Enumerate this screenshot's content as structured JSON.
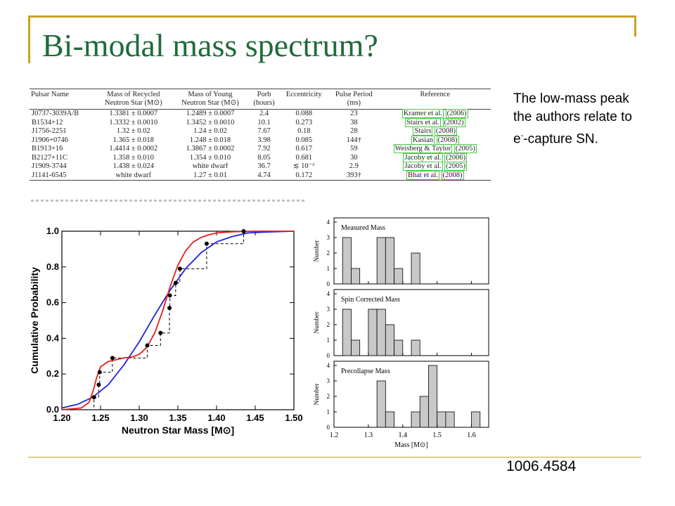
{
  "slide": {
    "title": "Bi-modal mass spectrum?",
    "note_line1": "The low-mass peak",
    "note_line2": "the authors relate to",
    "note_line3_pre": "e",
    "note_line3_sup": "-",
    "note_line3_post": "-capture SN.",
    "reference": "1006.4584"
  },
  "colors": {
    "title": "#1f6b3b",
    "accent_line": "#c9a227",
    "ref_box": "#3fcf3f",
    "cdf_red": "#e02020",
    "cdf_blue": "#2020e0",
    "hist_bar": "#c8c8c8"
  },
  "table": {
    "headers": {
      "name": "Pulsar Name",
      "recycled": [
        "Mass of Recycled",
        "Neutron Star (M⊙)"
      ],
      "young": [
        "Mass of Young",
        "Neutron Star (M⊙)"
      ],
      "porb": [
        "Porb",
        "(hours)"
      ],
      "ecc": "Eccentricity",
      "period": [
        "Pulse Period",
        "(ms)"
      ],
      "ref": "Reference"
    },
    "rows": [
      {
        "name": "J0737-3039A/B",
        "recycled": "1.3381 ± 0.0007",
        "young": "1.2489 ± 0.0007",
        "porb": "2.4",
        "ecc": "0.088",
        "period": "23",
        "ref_author": "Kramer et al.",
        "ref_year": "(2006)"
      },
      {
        "name": "B1534+12",
        "recycled": "1.3332 ± 0.0010",
        "young": "1.3452 ± 0.0010",
        "porb": "10.1",
        "ecc": "0.273",
        "period": "38",
        "ref_author": "Stairs et al.",
        "ref_year": "(2002)"
      },
      {
        "name": "J1756-2251",
        "recycled": "1.32 ± 0.02",
        "young": "1.24 ± 0.02",
        "porb": "7.67",
        "ecc": "0.18",
        "period": "28",
        "ref_author": "Stairs",
        "ref_year": "(2008)"
      },
      {
        "name": "J1906+0746",
        "recycled": "1.365 ± 0.018",
        "young": "1.248 ± 0.018",
        "porb": "3.98",
        "ecc": "0.085",
        "period": "144†",
        "ref_author": "Kasian",
        "ref_year": "(2008)"
      },
      {
        "name": "B1913+16",
        "recycled": "1.4414 ± 0.0002",
        "young": "1.3867 ± 0.0002",
        "porb": "7.92",
        "ecc": "0.617",
        "period": "59",
        "ref_author": "Weisberg & Taylor",
        "ref_year": "(2005)"
      },
      {
        "name": "B2127+11C",
        "recycled": "1.358 ± 0.010",
        "young": "1.354 ± 0.010",
        "porb": "8.05",
        "ecc": "0.681",
        "period": "30",
        "ref_author": "Jacoby et al.",
        "ref_year": "(2006)"
      },
      {
        "name": "J1909-3744",
        "recycled": "1.438 ± 0.024",
        "young": "white dwarf",
        "porb": "36.7",
        "ecc": "≲ 10⁻⁶",
        "period": "2.9",
        "ref_author": "Jacoby et al.",
        "ref_year": "(2005)"
      },
      {
        "name": "J1141-6545",
        "recycled": "white dwarf",
        "young": "1.27 ± 0.01",
        "porb": "4.74",
        "ecc": "0.172",
        "period": "393†",
        "ref_author": "Bhat et al.",
        "ref_year": "(2008)"
      }
    ]
  },
  "chart_data": [
    {
      "type": "line",
      "xlabel": "Neutron Star Mass [M⊙]",
      "ylabel": "Cumulative Probability",
      "xlim": [
        1.2,
        1.5
      ],
      "ylim": [
        0.0,
        1.0
      ],
      "xticks": [
        "1.20",
        "1.25",
        "1.30",
        "1.35",
        "1.40",
        "1.45",
        "1.50"
      ],
      "yticks": [
        "0.0",
        "0.2",
        "0.4",
        "0.6",
        "0.8",
        "1.0"
      ],
      "series": [
        {
          "style": "points",
          "x": [
            1.2415,
            1.2476,
            1.2489,
            1.2653,
            1.3104,
            1.3275,
            1.3391,
            1.3396,
            1.3471,
            1.3526,
            1.3872,
            1.435
          ],
          "y": [
            0.07,
            0.14,
            0.21,
            0.29,
            0.36,
            0.43,
            0.57,
            0.64,
            0.71,
            0.79,
            0.93,
            1.0
          ]
        },
        {
          "style": "red-model",
          "x": [
            1.2,
            1.225,
            1.235,
            1.24,
            1.245,
            1.25,
            1.26,
            1.27,
            1.28,
            1.29,
            1.3,
            1.31,
            1.32,
            1.33,
            1.34,
            1.35,
            1.36,
            1.37,
            1.38,
            1.39,
            1.4,
            1.42,
            1.45,
            1.5
          ],
          "y": [
            0.0,
            0.01,
            0.04,
            0.1,
            0.18,
            0.24,
            0.27,
            0.28,
            0.29,
            0.295,
            0.31,
            0.35,
            0.43,
            0.55,
            0.69,
            0.81,
            0.89,
            0.94,
            0.965,
            0.98,
            0.99,
            0.997,
            1.0,
            1.0
          ]
        },
        {
          "style": "blue-model",
          "x": [
            1.2,
            1.22,
            1.24,
            1.26,
            1.28,
            1.3,
            1.32,
            1.34,
            1.36,
            1.38,
            1.4,
            1.42,
            1.44,
            1.46,
            1.5
          ],
          "y": [
            0.01,
            0.03,
            0.07,
            0.14,
            0.25,
            0.38,
            0.53,
            0.67,
            0.79,
            0.88,
            0.94,
            0.97,
            0.99,
            0.995,
            1.0
          ]
        }
      ]
    },
    {
      "type": "bar",
      "title": "Measured Mass",
      "ylabel": "Number",
      "xlim": [
        1.2,
        1.65
      ],
      "ylim": [
        0,
        4
      ],
      "yticks": [
        "0",
        "1",
        "2",
        "3",
        "4"
      ],
      "bin_width": 0.025,
      "bins": [
        {
          "x": 1.225,
          "v": 3
        },
        {
          "x": 1.25,
          "v": 1
        },
        {
          "x": 1.325,
          "v": 3
        },
        {
          "x": 1.35,
          "v": 3
        },
        {
          "x": 1.375,
          "v": 1
        },
        {
          "x": 1.425,
          "v": 2
        }
      ]
    },
    {
      "type": "bar",
      "title": "Spin Corrected Mass",
      "ylabel": "Number",
      "xlim": [
        1.2,
        1.65
      ],
      "ylim": [
        0,
        4
      ],
      "yticks": [
        "0",
        "1",
        "2",
        "3",
        "4"
      ],
      "bin_width": 0.025,
      "bins": [
        {
          "x": 1.225,
          "v": 3
        },
        {
          "x": 1.25,
          "v": 1
        },
        {
          "x": 1.3,
          "v": 3
        },
        {
          "x": 1.325,
          "v": 3
        },
        {
          "x": 1.35,
          "v": 2
        },
        {
          "x": 1.375,
          "v": 1
        },
        {
          "x": 1.425,
          "v": 1
        }
      ]
    },
    {
      "type": "bar",
      "title": "Precollapse Mass",
      "ylabel": "Number",
      "xlabel": "Mass [M⊙]",
      "xlim": [
        1.2,
        1.65
      ],
      "ylim": [
        0,
        4
      ],
      "xticks": [
        "1.2",
        "1.3",
        "1.4",
        "1.5",
        "1.6"
      ],
      "yticks": [
        "0",
        "1",
        "2",
        "3",
        "4"
      ],
      "bin_width": 0.025,
      "bins": [
        {
          "x": 1.325,
          "v": 3
        },
        {
          "x": 1.35,
          "v": 1
        },
        {
          "x": 1.425,
          "v": 1
        },
        {
          "x": 1.45,
          "v": 2
        },
        {
          "x": 1.475,
          "v": 4
        },
        {
          "x": 1.5,
          "v": 1
        },
        {
          "x": 1.525,
          "v": 1
        },
        {
          "x": 1.6,
          "v": 1
        }
      ]
    }
  ]
}
